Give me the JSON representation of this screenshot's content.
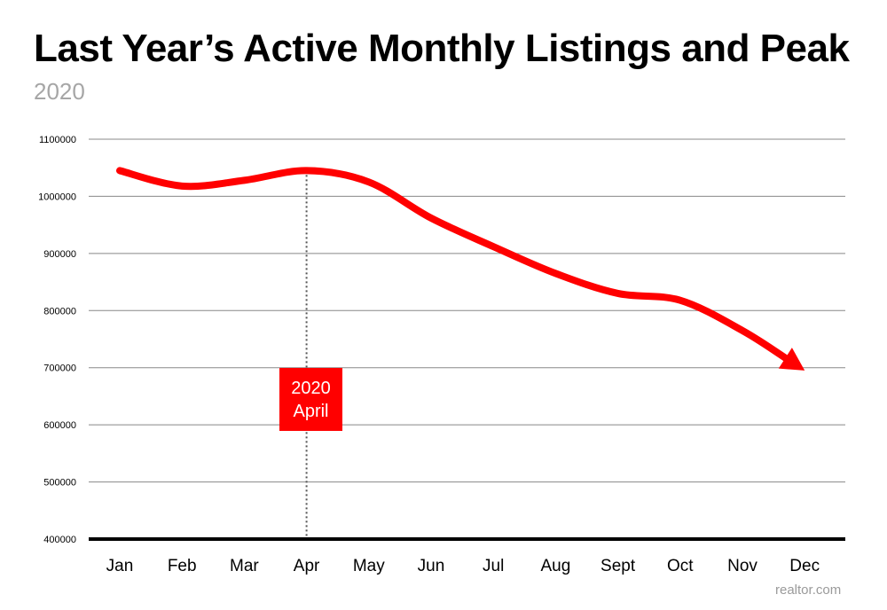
{
  "title": "Last Year’s Active Monthly Listings and Peak",
  "subtitle": "2020",
  "source": "realtor.com",
  "colors": {
    "line": "#ff0000",
    "grid": "#888888",
    "axis": "#000000",
    "annotation_bg": "#ff0000",
    "subtitle": "#a6a6a6"
  },
  "chart_data": {
    "type": "line",
    "title": "Last Year’s Active Monthly Listings and Peak",
    "subtitle": "2020",
    "categories": [
      "Jan",
      "Feb",
      "Mar",
      "Apr",
      "May",
      "Jun",
      "Jul",
      "Aug",
      "Sept",
      "Oct",
      "Nov",
      "Dec"
    ],
    "series": [
      {
        "values": [
          1045000,
          1018000,
          1028000,
          1045000,
          1025000,
          962000,
          912000,
          865000,
          830000,
          818000,
          765000,
          695000
        ]
      }
    ],
    "y_ticks": [
      400000,
      500000,
      600000,
      700000,
      800000,
      900000,
      1000000,
      1100000
    ],
    "y_tick_labels": [
      "400000",
      "500000",
      "600000",
      "700000",
      "800000",
      "900000",
      "1000000",
      "1100000"
    ],
    "ylim": [
      400000,
      1100000
    ],
    "grid": true,
    "last_point_arrow": true,
    "annotation": {
      "category": "Apr",
      "line1": "2020",
      "line2": "April",
      "marker_style": "dotted vertical line"
    }
  }
}
